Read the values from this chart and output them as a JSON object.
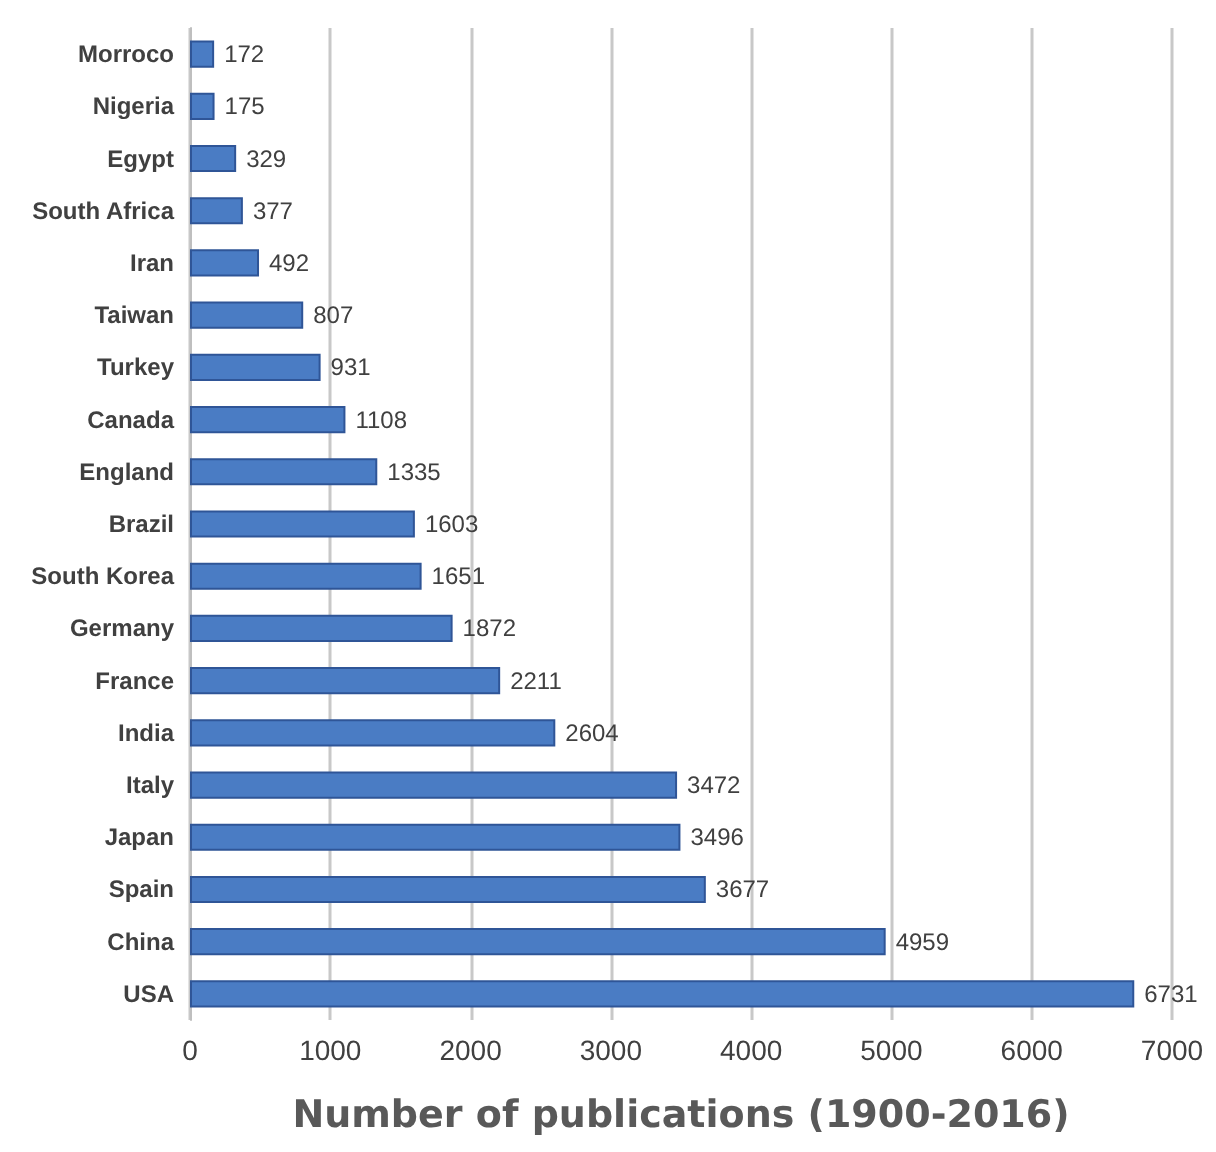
{
  "chart_data": {
    "type": "bar",
    "orientation": "horizontal",
    "xlabel": "Number of publications (1900-2016)",
    "categories": [
      "Morroco",
      "Nigeria",
      "Egypt",
      "South Africa",
      "Iran",
      "Taiwan",
      "Turkey",
      "Canada",
      "England",
      "Brazil",
      "South Korea",
      "Germany",
      "France",
      "India",
      "Italy",
      "Japan",
      "Spain",
      "China",
      "USA"
    ],
    "values": [
      172,
      175,
      329,
      377,
      492,
      807,
      931,
      1108,
      1335,
      1603,
      1651,
      1872,
      2211,
      2604,
      3472,
      3496,
      3677,
      4959,
      6731
    ],
    "color": "#4a7cc4",
    "xlim": [
      0,
      7000
    ],
    "xticks": [
      0,
      1000,
      2000,
      3000,
      4000,
      5000,
      6000,
      7000
    ],
    "grid": "x",
    "data_labels": true
  }
}
